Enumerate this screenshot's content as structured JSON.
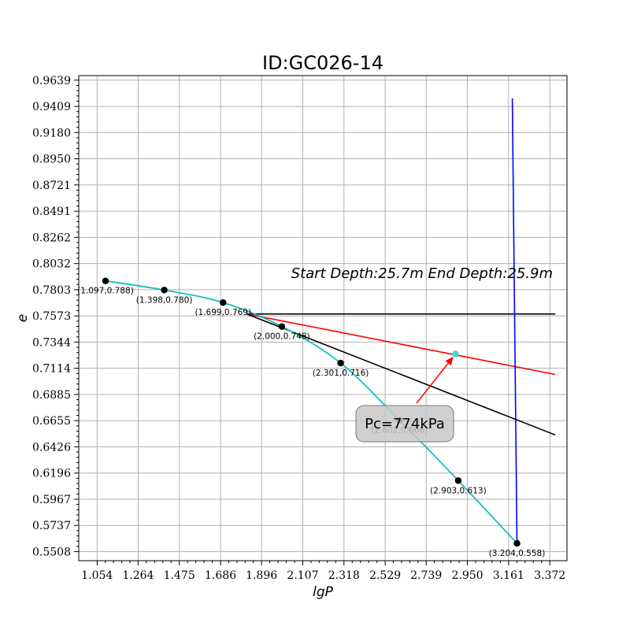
{
  "chart_data": {
    "type": "line",
    "title": "ID:GC026-14",
    "xlabel": "lgP",
    "ylabel": "e",
    "xlim": [
      0.96,
      3.46
    ],
    "ylim": [
      0.5428,
      0.9679
    ],
    "grid": true,
    "x_ticks": [
      "1.054",
      "1.264",
      "1.475",
      "1.686",
      "1.896",
      "2.107",
      "2.318",
      "2.529",
      "2.739",
      "2.950",
      "3.161",
      "3.372"
    ],
    "y_ticks": [
      "0.5508",
      "0.5737",
      "0.5967",
      "0.6196",
      "0.6426",
      "0.6655",
      "0.6885",
      "0.7114",
      "0.7344",
      "0.7573",
      "0.7803",
      "0.8032",
      "0.8262",
      "0.8491",
      "0.8721",
      "0.8950",
      "0.9180",
      "0.9409",
      "0.9639"
    ],
    "points": [
      {
        "x": 1.097,
        "y": 0.788,
        "label": "(1.097,0.788)"
      },
      {
        "x": 1.398,
        "y": 0.78,
        "label": "(1.398,0.780)"
      },
      {
        "x": 1.699,
        "y": 0.769,
        "label": "(1.699,0.769)"
      },
      {
        "x": 2.0,
        "y": 0.748,
        "label": "(2.000,0.748)"
      },
      {
        "x": 2.301,
        "y": 0.716,
        "label": "(2.301,0.716)"
      },
      {
        "x": 2.602,
        "y": 0.666,
        "label": "(2.602,0.666)"
      },
      {
        "x": 2.903,
        "y": 0.613,
        "label": "(2.903,0.613)"
      },
      {
        "x": 3.204,
        "y": 0.558,
        "label": "(3.204,0.558)"
      }
    ],
    "curve_color": "#17bebb",
    "lines": [
      {
        "color": "#000000",
        "x": [
          1.82,
          3.4
        ],
        "y": [
          0.759,
          0.759
        ]
      },
      {
        "color": "#ff0000",
        "x": [
          1.82,
          3.4
        ],
        "y": [
          0.759,
          0.706
        ]
      },
      {
        "color": "#000000",
        "x": [
          1.82,
          3.4
        ],
        "y": [
          0.759,
          0.653
        ]
      },
      {
        "color": "#0000ff",
        "x": [
          3.18,
          3.204
        ],
        "y": [
          0.948,
          0.558
        ]
      }
    ],
    "pc_point": {
      "x": 2.889,
      "y": 0.724,
      "color": "#44d6d6"
    },
    "depth_annotation": "Start Depth:25.7m End Depth:25.9m",
    "pc_label": "Pc=774kPa"
  }
}
